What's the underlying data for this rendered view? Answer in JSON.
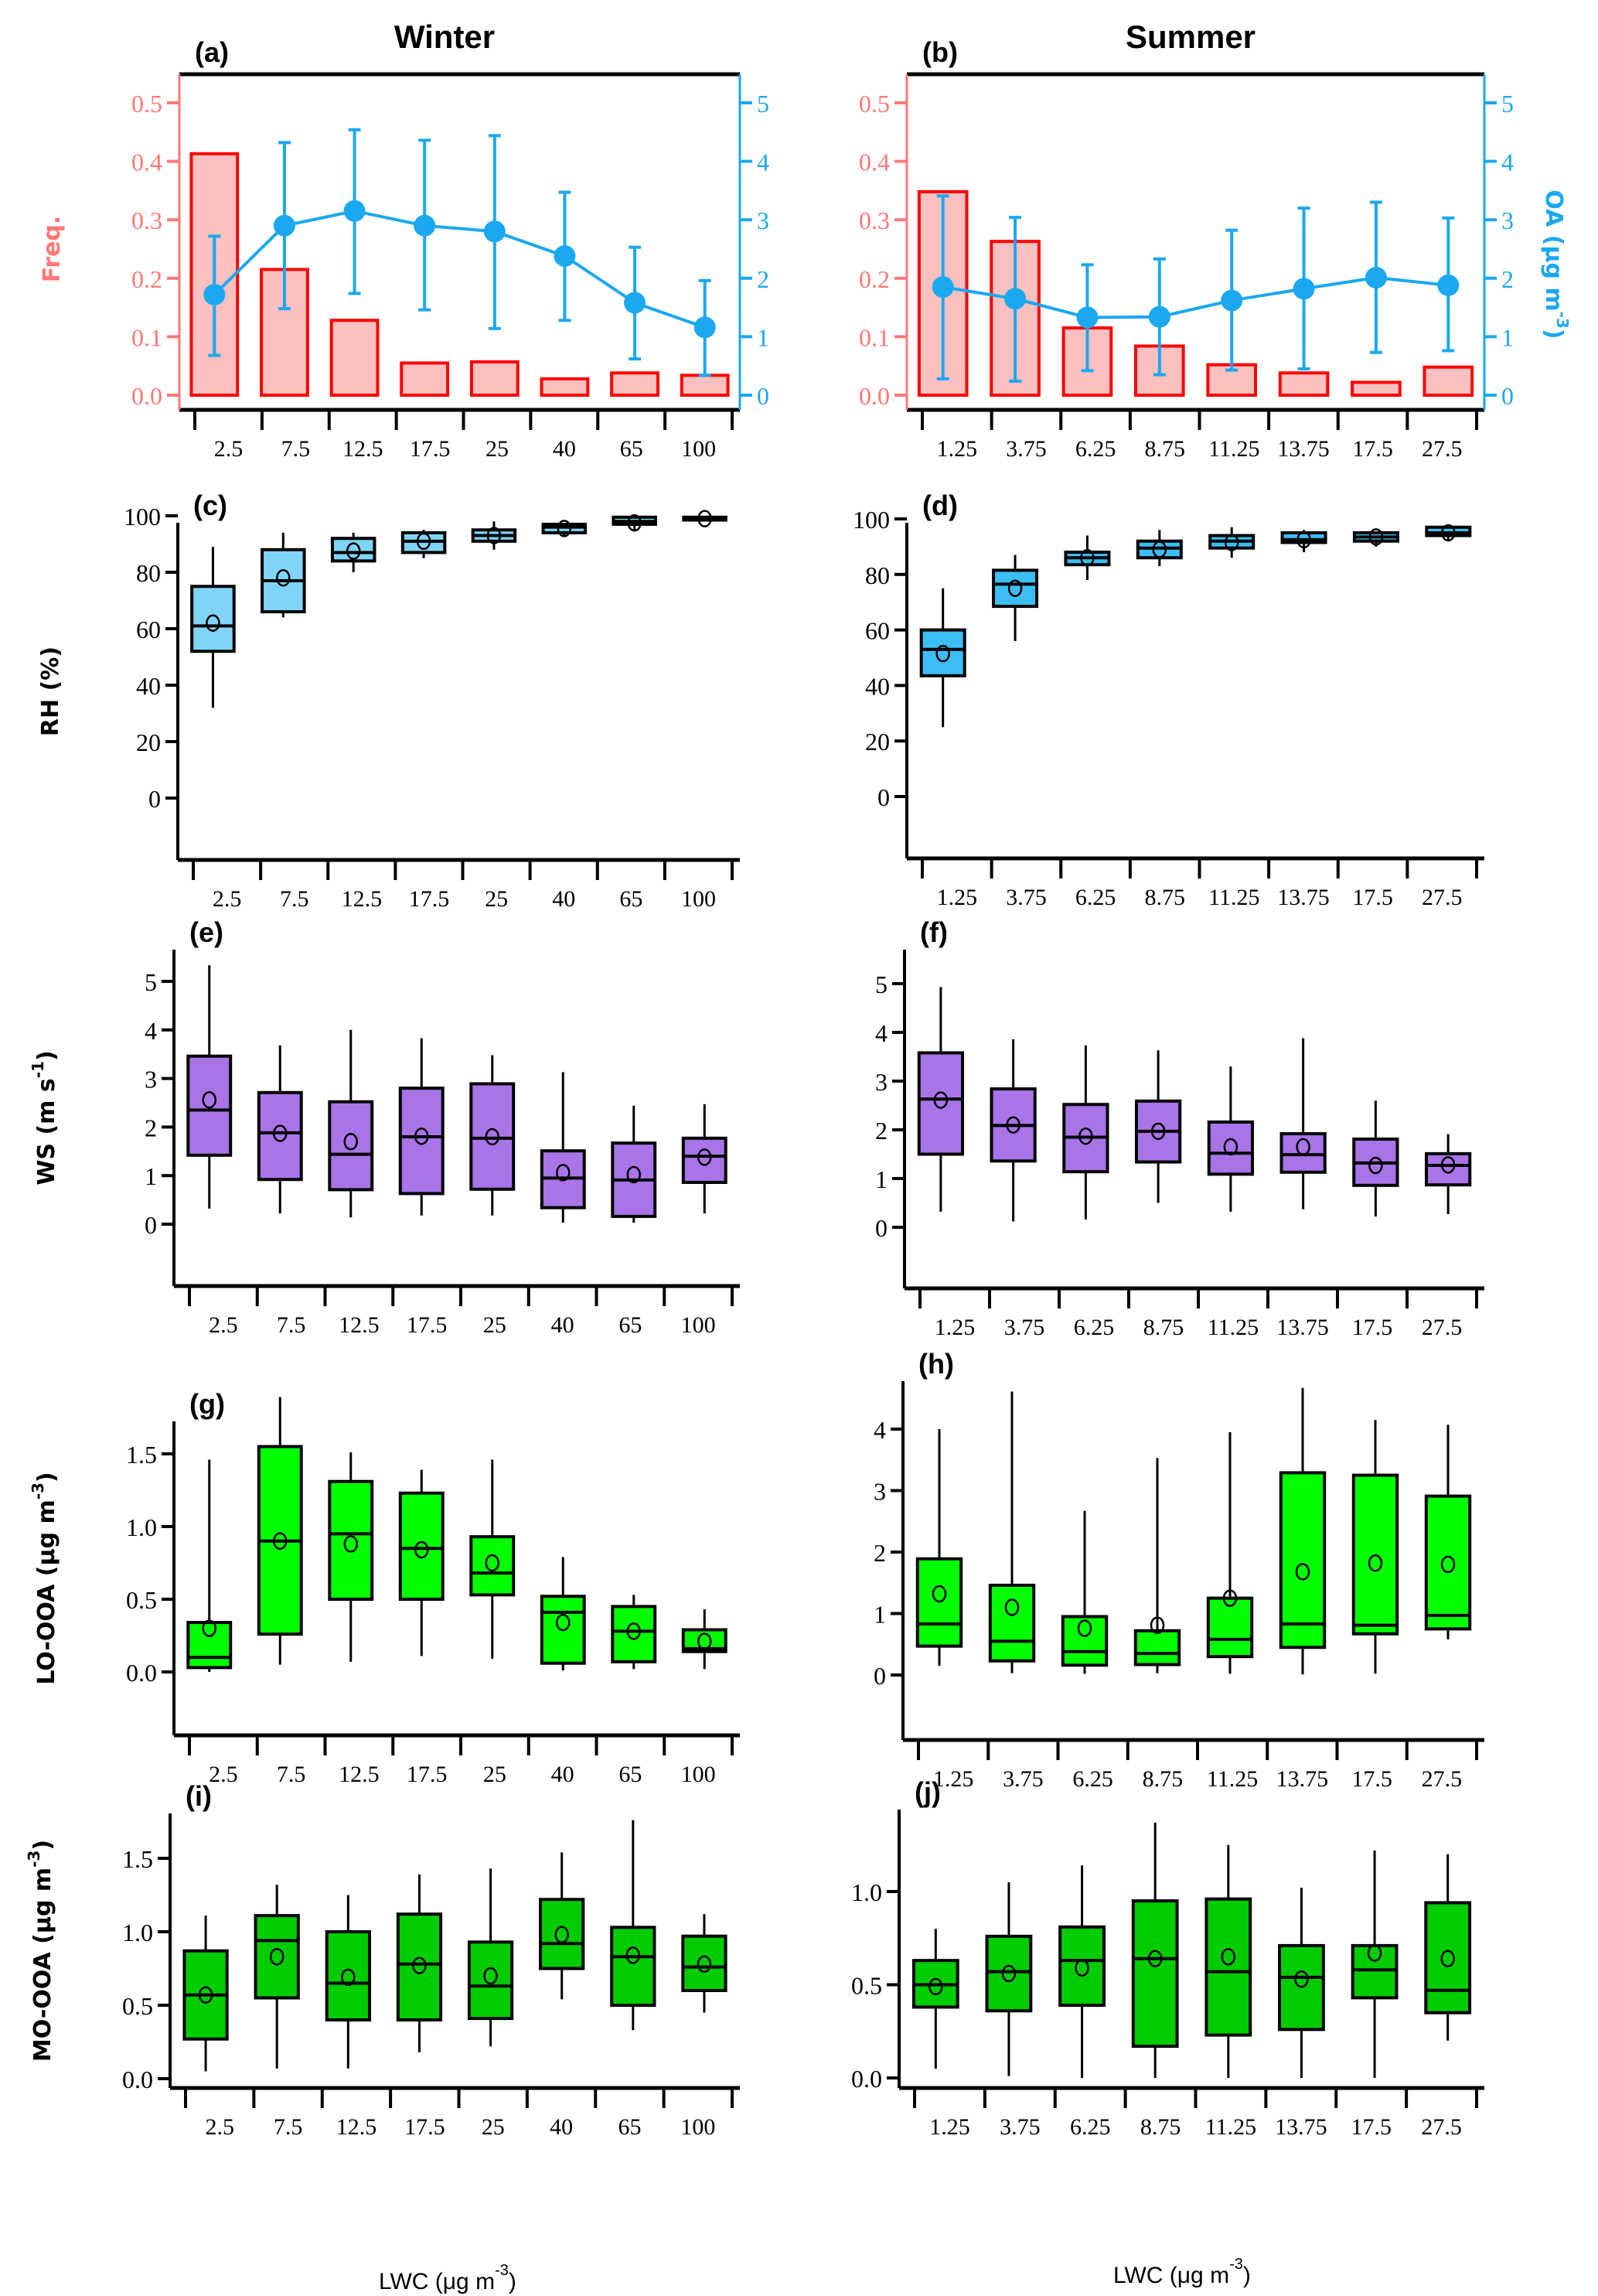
{
  "figure": {
    "column_titles": [
      "Winter",
      "Summer"
    ],
    "xlabel": "LWC (μg m",
    "xlabel_sup": "-3",
    "xlabel_close": ")"
  },
  "chart_data": [
    {
      "panel": "(a)",
      "season": "Winter",
      "type": "bar+line",
      "categories": [
        "2.5",
        "7.5",
        "12.5",
        "17.5",
        "25",
        "40",
        "65",
        "100"
      ],
      "ylabel_left": "Freq.",
      "ylim_left": [
        0,
        0.5
      ],
      "yticks_left": [
        "0.0",
        "0.1",
        "0.2",
        "0.3",
        "0.4",
        "0.5"
      ],
      "ylabel_right": "",
      "ylim_right": [
        0,
        5
      ],
      "yticks_right": [
        "0",
        "1",
        "2",
        "3",
        "4",
        "5"
      ],
      "freq": [
        0.413,
        0.215,
        0.128,
        0.055,
        0.057,
        0.028,
        0.038,
        0.034
      ],
      "oa_mean": [
        1.72,
        2.9,
        3.15,
        2.9,
        2.8,
        2.38,
        1.58,
        1.16
      ],
      "oa_lower": [
        0.68,
        1.48,
        1.74,
        1.46,
        1.14,
        1.28,
        0.62,
        0.34
      ],
      "oa_upper": [
        2.72,
        4.32,
        4.54,
        4.36,
        4.44,
        3.47,
        2.53,
        1.96
      ]
    },
    {
      "panel": "(b)",
      "season": "Summer",
      "type": "bar+line",
      "categories": [
        "1.25",
        "3.75",
        "6.25",
        "8.75",
        "11.25",
        "13.75",
        "17.5",
        "27.5"
      ],
      "ylabel_left": "",
      "ylim_left": [
        0,
        0.5
      ],
      "yticks_left": [
        "0.0",
        "0.1",
        "0.2",
        "0.3",
        "0.4",
        "0.5"
      ],
      "ylabel_right": "OA (μg m",
      "ylabel_right_sup": "-3",
      "ylim_right": [
        0,
        5
      ],
      "yticks_right": [
        "0",
        "1",
        "2",
        "3",
        "4",
        "5"
      ],
      "freq": [
        0.348,
        0.263,
        0.115,
        0.084,
        0.052,
        0.038,
        0.022,
        0.048
      ],
      "oa_mean": [
        1.85,
        1.65,
        1.33,
        1.34,
        1.62,
        1.82,
        2.01,
        1.88
      ],
      "oa_lower": [
        0.28,
        0.24,
        0.42,
        0.35,
        0.43,
        0.45,
        0.73,
        0.76
      ],
      "oa_upper": [
        3.41,
        3.04,
        2.23,
        2.33,
        2.82,
        3.2,
        3.3,
        3.03
      ]
    },
    {
      "panel": "(c)",
      "season": "Winter",
      "type": "box",
      "categories": [
        "2.5",
        "7.5",
        "12.5",
        "17.5",
        "25",
        "40",
        "65",
        "100"
      ],
      "ylabel": "RH (%)",
      "ylim": [
        0,
        100
      ],
      "yticks": [
        "0",
        "20",
        "40",
        "60",
        "80",
        "100"
      ],
      "fill": "#80d4f8",
      "whisker_low": [
        32,
        64,
        80,
        85,
        88,
        93,
        95,
        98.5
      ],
      "q1": [
        52,
        66,
        84,
        87,
        91,
        94,
        97,
        98.5
      ],
      "median": [
        61,
        77,
        87,
        91,
        93,
        96,
        98,
        99
      ],
      "q3": [
        75,
        88,
        92,
        94,
        95,
        97,
        99.5,
        99.5
      ],
      "whisker_high": [
        89,
        94,
        94,
        95,
        98,
        97.5,
        100,
        100
      ],
      "mean": [
        62,
        78,
        87.5,
        91,
        93,
        95.5,
        97.5,
        99
      ]
    },
    {
      "panel": "(d)",
      "season": "Summer",
      "type": "box",
      "categories": [
        "1.25",
        "3.75",
        "6.25",
        "8.75",
        "11.25",
        "13.75",
        "17.5",
        "27.5"
      ],
      "ylabel": "",
      "ylim": [
        0,
        100
      ],
      "yticks": [
        "0",
        "20",
        "40",
        "60",
        "80",
        "100"
      ],
      "fill": "#3cbef5",
      "whisker_low": [
        25,
        56,
        78,
        83,
        86,
        88,
        90,
        92.5
      ],
      "q1": [
        43.5,
        68.5,
        83.5,
        86,
        89.5,
        91.5,
        92,
        94
      ],
      "median": [
        53,
        76.5,
        86,
        89.5,
        92,
        92.5,
        93.5,
        95
      ],
      "q3": [
        60,
        81.5,
        88,
        92,
        94,
        95,
        95,
        97
      ],
      "whisker_high": [
        75,
        87,
        94,
        96,
        97,
        96,
        95.5,
        97.5
      ],
      "mean": [
        51.5,
        75,
        86,
        89,
        91.5,
        92.5,
        93.5,
        95
      ]
    },
    {
      "panel": "(e)",
      "season": "Winter",
      "type": "box",
      "categories": [
        "2.5",
        "7.5",
        "12.5",
        "17.5",
        "25",
        "40",
        "65",
        "100"
      ],
      "ylabel": "WS (m s",
      "ylabel_sup": "-1",
      "ylabel_close": ")",
      "ylim": [
        0,
        5.6
      ],
      "yticks": [
        "0",
        "1",
        "2",
        "3",
        "4",
        "5"
      ],
      "fill": "#a874e8",
      "whisker_low": [
        0.32,
        0.22,
        0.14,
        0.18,
        0.18,
        0.03,
        0.03,
        0.22
      ],
      "q1": [
        1.42,
        0.92,
        0.71,
        0.63,
        0.72,
        0.34,
        0.16,
        0.86
      ],
      "median": [
        2.35,
        1.88,
        1.44,
        1.8,
        1.77,
        0.95,
        0.91,
        1.4
      ],
      "q3": [
        3.46,
        2.71,
        2.52,
        2.8,
        2.89,
        1.51,
        1.67,
        1.77
      ],
      "whisker_high": [
        5.33,
        3.68,
        4.0,
        3.83,
        3.48,
        3.13,
        2.44,
        2.47
      ],
      "mean": [
        2.56,
        1.87,
        1.7,
        1.81,
        1.8,
        1.06,
        1.02,
        1.38
      ]
    },
    {
      "panel": "(f)",
      "season": "Summer",
      "type": "box",
      "categories": [
        "1.25",
        "3.75",
        "6.25",
        "8.75",
        "11.25",
        "13.75",
        "17.5",
        "27.5"
      ],
      "ylabel": "",
      "ylim": [
        0,
        5.6
      ],
      "yticks": [
        "0",
        "1",
        "2",
        "3",
        "4",
        "5"
      ],
      "fill": "#a874e8",
      "whisker_low": [
        0.32,
        0.12,
        0.16,
        0.5,
        0.32,
        0.37,
        0.22,
        0.27
      ],
      "q1": [
        1.5,
        1.36,
        1.14,
        1.34,
        1.09,
        1.13,
        0.86,
        0.87
      ],
      "median": [
        2.63,
        2.09,
        1.85,
        1.97,
        1.52,
        1.49,
        1.32,
        1.27
      ],
      "q3": [
        3.58,
        2.84,
        2.52,
        2.59,
        2.16,
        1.92,
        1.81,
        1.51
      ],
      "whisker_high": [
        4.93,
        3.86,
        3.73,
        3.63,
        3.3,
        3.88,
        2.6,
        1.91
      ],
      "mean": [
        2.61,
        2.1,
        1.87,
        1.97,
        1.65,
        1.65,
        1.27,
        1.28
      ]
    },
    {
      "panel": "(g)",
      "season": "Winter",
      "type": "box",
      "categories": [
        "2.5",
        "7.5",
        "12.5",
        "17.5",
        "25",
        "40",
        "65",
        "100"
      ],
      "ylabel": "LO-OOA (μg m",
      "ylabel_sup": "-3",
      "ylabel_close": ")",
      "ylim": [
        -0.07,
        1.95
      ],
      "yticks": [
        "0.0",
        "0.5",
        "1.0",
        "1.5"
      ],
      "fill": "#00ff00",
      "whisker_low": [
        0.0,
        0.05,
        0.07,
        0.11,
        0.09,
        0.01,
        0.02,
        0.02
      ],
      "q1": [
        0.03,
        0.26,
        0.5,
        0.5,
        0.53,
        0.06,
        0.07,
        0.14
      ],
      "median": [
        0.1,
        0.9,
        0.95,
        0.85,
        0.68,
        0.41,
        0.28,
        0.16
      ],
      "q3": [
        0.34,
        1.55,
        1.31,
        1.23,
        0.93,
        0.52,
        0.45,
        0.29
      ],
      "whisker_high": [
        1.46,
        1.89,
        1.51,
        1.39,
        1.46,
        0.79,
        0.53,
        0.43
      ],
      "mean": [
        0.3,
        0.9,
        0.88,
        0.84,
        0.75,
        0.34,
        0.28,
        0.21
      ]
    },
    {
      "panel": "(h)",
      "season": "Summer",
      "type": "box",
      "categories": [
        "1.25",
        "3.75",
        "6.25",
        "8.75",
        "11.25",
        "13.75",
        "17.5",
        "27.5"
      ],
      "ylabel": "",
      "ylim": [
        -0.17,
        4.7
      ],
      "yticks": [
        "0",
        "1",
        "2",
        "3",
        "4"
      ],
      "fill": "#00ff00",
      "whisker_low": [
        0.15,
        0.03,
        0.02,
        0.03,
        0.02,
        0.01,
        0.02,
        0.58
      ],
      "q1": [
        0.47,
        0.23,
        0.16,
        0.17,
        0.3,
        0.45,
        0.67,
        0.75
      ],
      "median": [
        0.83,
        0.55,
        0.38,
        0.35,
        0.58,
        0.83,
        0.81,
        0.97
      ],
      "q3": [
        1.89,
        1.46,
        0.95,
        0.72,
        1.25,
        3.29,
        3.25,
        2.91
      ],
      "whisker_high": [
        4.0,
        4.61,
        2.67,
        3.53,
        3.95,
        4.67,
        4.15,
        4.07
      ],
      "mean": [
        1.32,
        1.1,
        0.76,
        0.81,
        1.25,
        1.68,
        1.82,
        1.8
      ]
    },
    {
      "panel": "(i)",
      "season": "Winter",
      "type": "box",
      "categories": [
        "2.5",
        "7.5",
        "12.5",
        "17.5",
        "25",
        "40",
        "65",
        "100"
      ],
      "ylabel": "MO-OOA (μg m",
      "ylabel_sup": "-3",
      "ylabel_close": ")",
      "ylim": [
        -0.06,
        1.8
      ],
      "yticks": [
        "0.0",
        "0.5",
        "1.0",
        "1.5"
      ],
      "fill": "#00cc00",
      "whisker_low": [
        0.05,
        0.07,
        0.07,
        0.18,
        0.22,
        0.54,
        0.33,
        0.45
      ],
      "q1": [
        0.27,
        0.55,
        0.4,
        0.4,
        0.41,
        0.75,
        0.5,
        0.6
      ],
      "median": [
        0.57,
        0.94,
        0.65,
        0.78,
        0.63,
        0.92,
        0.83,
        0.76
      ],
      "q3": [
        0.87,
        1.11,
        1.0,
        1.12,
        0.93,
        1.22,
        1.03,
        0.97
      ],
      "whisker_high": [
        1.11,
        1.32,
        1.25,
        1.39,
        1.43,
        1.54,
        1.76,
        1.12
      ],
      "mean": [
        0.57,
        0.83,
        0.69,
        0.77,
        0.7,
        0.98,
        0.84,
        0.78
      ]
    },
    {
      "panel": "(j)",
      "season": "Summer",
      "type": "box",
      "categories": [
        "1.25",
        "3.75",
        "6.25",
        "8.75",
        "11.25",
        "13.75",
        "17.5",
        "27.5"
      ],
      "ylabel": "",
      "ylim": [
        -0.05,
        1.44
      ],
      "yticks": [
        "0.0",
        "0.5",
        "1.0"
      ],
      "fill": "#00cc00",
      "whisker_low": [
        0.05,
        0.01,
        0.0,
        0.0,
        0.0,
        0.0,
        0.0,
        0.2
      ],
      "q1": [
        0.38,
        0.36,
        0.39,
        0.17,
        0.23,
        0.26,
        0.43,
        0.35
      ],
      "median": [
        0.5,
        0.57,
        0.63,
        0.64,
        0.57,
        0.54,
        0.58,
        0.47
      ],
      "q3": [
        0.63,
        0.76,
        0.81,
        0.95,
        0.96,
        0.71,
        0.71,
        0.94
      ],
      "whisker_high": [
        0.8,
        1.05,
        1.14,
        1.37,
        1.25,
        1.02,
        1.22,
        1.2
      ],
      "mean": [
        0.49,
        0.56,
        0.59,
        0.64,
        0.65,
        0.53,
        0.67,
        0.64
      ]
    }
  ]
}
